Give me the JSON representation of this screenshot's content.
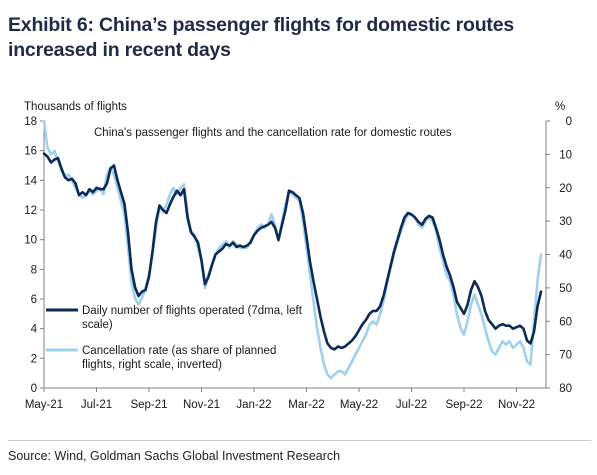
{
  "exhibit": {
    "title": "Exhibit 6: China’s passenger flights for domestic routes increased in recent days",
    "source": "Source: Wind, Goldman Sachs Global Investment Research"
  },
  "chart_data": {
    "type": "line",
    "title": "China's passenger flights and the cancellation rate for domestic routes",
    "left_axis": {
      "label": "Thousands of flights",
      "min": 0,
      "max": 18,
      "ticks": [
        "0",
        "2",
        "4",
        "6",
        "8",
        "10",
        "12",
        "14",
        "16",
        "18"
      ]
    },
    "right_axis": {
      "label": "%",
      "min": 0,
      "max": 80,
      "inverted": true,
      "ticks": [
        "0",
        "10",
        "20",
        "30",
        "40",
        "50",
        "60",
        "70",
        "80"
      ]
    },
    "x_axis": {
      "ticks": [
        "May-21",
        "Jul-21",
        "Sep-21",
        "Nov-21",
        "Jan-22",
        "Mar-22",
        "May-22",
        "Jul-22",
        "Sep-22",
        "Nov-22"
      ]
    },
    "grid": false,
    "legend_placement": "bottom-left",
    "series": [
      {
        "name": "Daily number of flights operated (7dma, left scale)",
        "axis": "left",
        "color": "#0b2a57",
        "points": [
          [
            "May-21",
            15.8
          ],
          [
            "May-21",
            15.6
          ],
          [
            "May-21",
            15.2
          ],
          [
            "May-21",
            15.4
          ],
          [
            "May-21",
            15.5
          ],
          [
            "May-21",
            14.8
          ],
          [
            "May-21",
            14.2
          ],
          [
            "May-21",
            14.0
          ],
          [
            "May-21",
            14.1
          ],
          [
            "May-21",
            13.8
          ],
          [
            "May-21",
            13.0
          ],
          [
            "May-21",
            13.2
          ],
          [
            "May-21",
            13.0
          ],
          [
            "May-21",
            13.4
          ],
          [
            "May-21",
            13.2
          ],
          [
            "Jul-21",
            13.5
          ],
          [
            "Jul-21",
            13.4
          ],
          [
            "Jul-21",
            13.4
          ],
          [
            "Jul-21",
            13.8
          ],
          [
            "Jul-21",
            14.8
          ],
          [
            "Jul-21",
            15.0
          ],
          [
            "Jul-21",
            14.0
          ],
          [
            "Jul-21",
            13.2
          ],
          [
            "Jul-21",
            12.4
          ],
          [
            "Jul-21",
            10.5
          ],
          [
            "Jul-21",
            8.0
          ],
          [
            "Jul-21",
            6.8
          ],
          [
            "Jul-21",
            6.2
          ],
          [
            "Jul-21",
            6.5
          ],
          [
            "Jul-21",
            6.6
          ],
          [
            "Sep-21",
            7.5
          ],
          [
            "Sep-21",
            9.2
          ],
          [
            "Sep-21",
            11.2
          ],
          [
            "Sep-21",
            12.3
          ],
          [
            "Sep-21",
            12.0
          ],
          [
            "Sep-21",
            11.8
          ],
          [
            "Sep-21",
            12.4
          ],
          [
            "Sep-21",
            12.9
          ],
          [
            "Sep-21",
            13.3
          ],
          [
            "Sep-21",
            13.0
          ],
          [
            "Sep-21",
            13.4
          ],
          [
            "Sep-21",
            11.5
          ],
          [
            "Sep-21",
            10.5
          ],
          [
            "Sep-21",
            10.2
          ],
          [
            "Sep-21",
            9.8
          ],
          [
            "Nov-21",
            8.6
          ],
          [
            "Nov-21",
            7.0
          ],
          [
            "Nov-21",
            7.5
          ],
          [
            "Nov-21",
            8.3
          ],
          [
            "Nov-21",
            9.0
          ],
          [
            "Nov-21",
            9.2
          ],
          [
            "Nov-21",
            9.4
          ],
          [
            "Nov-21",
            9.7
          ],
          [
            "Nov-21",
            9.6
          ],
          [
            "Nov-21",
            9.8
          ],
          [
            "Nov-21",
            9.5
          ],
          [
            "Nov-21",
            9.6
          ],
          [
            "Nov-21",
            9.5
          ],
          [
            "Nov-21",
            9.6
          ],
          [
            "Nov-21",
            9.8
          ],
          [
            "Jan-22",
            10.3
          ],
          [
            "Jan-22",
            10.6
          ],
          [
            "Jan-22",
            10.8
          ],
          [
            "Jan-22",
            10.9
          ],
          [
            "Jan-22",
            11.0
          ],
          [
            "Jan-22",
            11.2
          ],
          [
            "Jan-22",
            10.8
          ],
          [
            "Jan-22",
            10.0
          ],
          [
            "Jan-22",
            11.0
          ],
          [
            "Jan-22",
            12.0
          ],
          [
            "Jan-22",
            13.3
          ],
          [
            "Jan-22",
            13.2
          ],
          [
            "Jan-22",
            13.0
          ],
          [
            "Jan-22",
            12.8
          ],
          [
            "Jan-22",
            11.8
          ],
          [
            "Mar-22",
            10.2
          ],
          [
            "Mar-22",
            8.5
          ],
          [
            "Mar-22",
            7.2
          ],
          [
            "Mar-22",
            6.0
          ],
          [
            "Mar-22",
            4.8
          ],
          [
            "Mar-22",
            3.8
          ],
          [
            "Mar-22",
            3.0
          ],
          [
            "Mar-22",
            2.7
          ],
          [
            "Mar-22",
            2.6
          ],
          [
            "Mar-22",
            2.8
          ],
          [
            "Mar-22",
            2.7
          ],
          [
            "Mar-22",
            2.8
          ],
          [
            "Mar-22",
            3.0
          ],
          [
            "Mar-22",
            3.2
          ],
          [
            "Mar-22",
            3.5
          ],
          [
            "May-22",
            3.9
          ],
          [
            "May-22",
            4.3
          ],
          [
            "May-22",
            4.6
          ],
          [
            "May-22",
            5.0
          ],
          [
            "May-22",
            5.2
          ],
          [
            "May-22",
            5.2
          ],
          [
            "May-22",
            5.5
          ],
          [
            "May-22",
            6.2
          ],
          [
            "May-22",
            7.2
          ],
          [
            "May-22",
            8.2
          ],
          [
            "May-22",
            9.2
          ],
          [
            "May-22",
            10.0
          ],
          [
            "May-22",
            10.8
          ],
          [
            "May-22",
            11.5
          ],
          [
            "May-22",
            11.8
          ],
          [
            "Jul-22",
            11.7
          ],
          [
            "Jul-22",
            11.5
          ],
          [
            "Jul-22",
            11.2
          ],
          [
            "Jul-22",
            11.0
          ],
          [
            "Jul-22",
            11.4
          ],
          [
            "Jul-22",
            11.6
          ],
          [
            "Jul-22",
            11.5
          ],
          [
            "Jul-22",
            10.8
          ],
          [
            "Jul-22",
            10.0
          ],
          [
            "Jul-22",
            9.0
          ],
          [
            "Jul-22",
            8.2
          ],
          [
            "Jul-22",
            7.6
          ],
          [
            "Jul-22",
            6.8
          ],
          [
            "Jul-22",
            5.8
          ],
          [
            "Jul-22",
            5.4
          ],
          [
            "Sep-22",
            5.0
          ],
          [
            "Sep-22",
            5.6
          ],
          [
            "Sep-22",
            6.6
          ],
          [
            "Sep-22",
            7.2
          ],
          [
            "Sep-22",
            6.8
          ],
          [
            "Sep-22",
            6.2
          ],
          [
            "Sep-22",
            5.2
          ],
          [
            "Sep-22",
            4.6
          ],
          [
            "Sep-22",
            4.3
          ],
          [
            "Sep-22",
            4.0
          ],
          [
            "Sep-22",
            4.2
          ],
          [
            "Sep-22",
            4.3
          ],
          [
            "Sep-22",
            4.2
          ],
          [
            "Sep-22",
            4.2
          ],
          [
            "Sep-22",
            4.0
          ],
          [
            "Nov-22",
            4.1
          ],
          [
            "Nov-22",
            4.2
          ],
          [
            "Nov-22",
            4.0
          ],
          [
            "Nov-22",
            3.2
          ],
          [
            "Nov-22",
            3.0
          ],
          [
            "Nov-22",
            3.8
          ],
          [
            "Nov-22",
            5.5
          ],
          [
            "Nov-22",
            6.5
          ]
        ]
      },
      {
        "name": "Cancellation rate (as share of planned flights, right scale, inverted)",
        "axis": "right",
        "color": "#9fd0ec",
        "points": [
          [
            "May-21",
            0
          ],
          [
            "May-21",
            8
          ],
          [
            "May-21",
            10
          ],
          [
            "May-21",
            9
          ],
          [
            "May-21",
            12
          ],
          [
            "May-21",
            15
          ],
          [
            "May-21",
            17
          ],
          [
            "May-21",
            16
          ],
          [
            "May-21",
            18
          ],
          [
            "May-21",
            20
          ],
          [
            "May-21",
            22
          ],
          [
            "May-21",
            23
          ],
          [
            "May-21",
            22
          ],
          [
            "May-21",
            21
          ],
          [
            "May-21",
            22
          ],
          [
            "Jul-21",
            21
          ],
          [
            "Jul-21",
            20
          ],
          [
            "Jul-21",
            22
          ],
          [
            "Jul-21",
            16
          ],
          [
            "Jul-21",
            14
          ],
          [
            "Jul-21",
            16
          ],
          [
            "Jul-21",
            20
          ],
          [
            "Jul-21",
            24
          ],
          [
            "Jul-21",
            28
          ],
          [
            "Jul-21",
            38
          ],
          [
            "Jul-21",
            48
          ],
          [
            "Jul-21",
            53
          ],
          [
            "Jul-21",
            55
          ],
          [
            "Jul-21",
            53
          ],
          [
            "Jul-21",
            50
          ],
          [
            "Sep-21",
            46
          ],
          [
            "Sep-21",
            40
          ],
          [
            "Sep-21",
            32
          ],
          [
            "Sep-21",
            26
          ],
          [
            "Sep-21",
            27
          ],
          [
            "Sep-21",
            25
          ],
          [
            "Sep-21",
            22
          ],
          [
            "Sep-21",
            20
          ],
          [
            "Sep-21",
            22
          ],
          [
            "Sep-21",
            20
          ],
          [
            "Sep-21",
            19
          ],
          [
            "Sep-21",
            28
          ],
          [
            "Sep-21",
            33
          ],
          [
            "Sep-21",
            34
          ],
          [
            "Sep-21",
            38
          ],
          [
            "Nov-21",
            42
          ],
          [
            "Nov-21",
            50
          ],
          [
            "Nov-21",
            46
          ],
          [
            "Nov-21",
            43
          ],
          [
            "Nov-21",
            40
          ],
          [
            "Nov-21",
            38
          ],
          [
            "Nov-21",
            37
          ],
          [
            "Nov-21",
            36
          ],
          [
            "Nov-21",
            38
          ],
          [
            "Nov-21",
            36
          ],
          [
            "Nov-21",
            37
          ],
          [
            "Nov-21",
            38
          ],
          [
            "Nov-21",
            38
          ],
          [
            "Nov-21",
            38
          ],
          [
            "Nov-21",
            36
          ],
          [
            "Jan-22",
            34
          ],
          [
            "Jan-22",
            32
          ],
          [
            "Jan-22",
            31
          ],
          [
            "Jan-22",
            32
          ],
          [
            "Jan-22",
            31
          ],
          [
            "Jan-22",
            28
          ],
          [
            "Jan-22",
            31
          ],
          [
            "Jan-22",
            36
          ],
          [
            "Jan-22",
            30
          ],
          [
            "Jan-22",
            25
          ],
          [
            "Jan-22",
            21
          ],
          [
            "Jan-22",
            22
          ],
          [
            "Jan-22",
            23
          ],
          [
            "Jan-22",
            24
          ],
          [
            "Jan-22",
            30
          ],
          [
            "Mar-22",
            38
          ],
          [
            "Mar-22",
            46
          ],
          [
            "Mar-22",
            54
          ],
          [
            "Mar-22",
            62
          ],
          [
            "Mar-22",
            68
          ],
          [
            "Mar-22",
            73
          ],
          [
            "Mar-22",
            76
          ],
          [
            "Mar-22",
            77
          ],
          [
            "Mar-22",
            76
          ],
          [
            "Mar-22",
            75
          ],
          [
            "Mar-22",
            75
          ],
          [
            "Mar-22",
            76
          ],
          [
            "Mar-22",
            74
          ],
          [
            "Mar-22",
            72
          ],
          [
            "Mar-22",
            70
          ],
          [
            "May-22",
            68
          ],
          [
            "May-22",
            66
          ],
          [
            "May-22",
            64
          ],
          [
            "May-22",
            61
          ],
          [
            "May-22",
            60
          ],
          [
            "May-22",
            61
          ],
          [
            "May-22",
            58
          ],
          [
            "May-22",
            54
          ],
          [
            "May-22",
            49
          ],
          [
            "May-22",
            44
          ],
          [
            "May-22",
            40
          ],
          [
            "May-22",
            36
          ],
          [
            "May-22",
            33
          ],
          [
            "May-22",
            30
          ],
          [
            "May-22",
            28
          ],
          [
            "Jul-22",
            28
          ],
          [
            "Jul-22",
            29
          ],
          [
            "Jul-22",
            31
          ],
          [
            "Jul-22",
            32
          ],
          [
            "Jul-22",
            30
          ],
          [
            "Jul-22",
            29
          ],
          [
            "Jul-22",
            30
          ],
          [
            "Jul-22",
            33
          ],
          [
            "Jul-22",
            38
          ],
          [
            "Jul-22",
            42
          ],
          [
            "Jul-22",
            46
          ],
          [
            "Jul-22",
            48
          ],
          [
            "Jul-22",
            52
          ],
          [
            "Jul-22",
            58
          ],
          [
            "Jul-22",
            62
          ],
          [
            "Sep-22",
            64
          ],
          [
            "Sep-22",
            60
          ],
          [
            "Sep-22",
            55
          ],
          [
            "Sep-22",
            52
          ],
          [
            "Sep-22",
            55
          ],
          [
            "Sep-22",
            58
          ],
          [
            "Sep-22",
            62
          ],
          [
            "Sep-22",
            66
          ],
          [
            "Sep-22",
            69
          ],
          [
            "Sep-22",
            70
          ],
          [
            "Sep-22",
            68
          ],
          [
            "Sep-22",
            66
          ],
          [
            "Sep-22",
            67
          ],
          [
            "Sep-22",
            66
          ],
          [
            "Sep-22",
            68
          ],
          [
            "Nov-22",
            67
          ],
          [
            "Nov-22",
            66
          ],
          [
            "Nov-22",
            68
          ],
          [
            "Nov-22",
            72
          ],
          [
            "Nov-22",
            73
          ],
          [
            "Nov-22",
            60
          ],
          [
            "Nov-22",
            48
          ],
          [
            "Nov-22",
            40
          ]
        ]
      }
    ]
  }
}
